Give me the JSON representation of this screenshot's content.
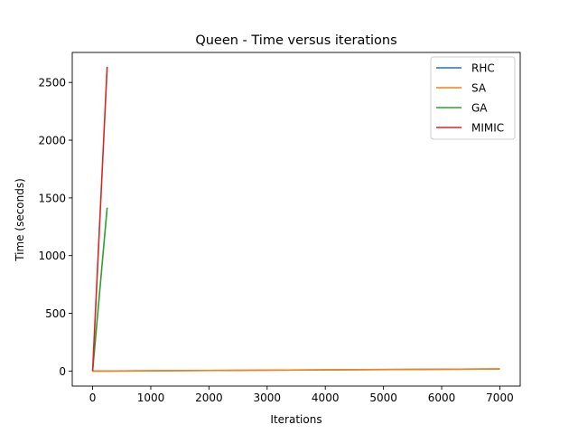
{
  "chart_data": {
    "type": "line",
    "title": "Queen - Time versus iterations",
    "xlabel": "Iterations",
    "ylabel": "Time (seconds)",
    "xlim": [
      -350,
      7350
    ],
    "ylim": [
      -130,
      2760
    ],
    "xticks": [
      0,
      1000,
      2000,
      3000,
      4000,
      5000,
      6000,
      7000
    ],
    "yticks": [
      0,
      500,
      1000,
      1500,
      2000,
      2500
    ],
    "grid": false,
    "legend_position": "top-right",
    "series": [
      {
        "name": "RHC",
        "color": "#1f77b4",
        "x": [
          0,
          7000
        ],
        "y": [
          0,
          18
        ]
      },
      {
        "name": "SA",
        "color": "#ff7f0e",
        "x": [
          0,
          7000
        ],
        "y": [
          0,
          18
        ]
      },
      {
        "name": "GA",
        "color": "#2ca02c",
        "x": [
          0,
          250
        ],
        "y": [
          0,
          1415
        ]
      },
      {
        "name": "MIMIC",
        "color": "#d62728",
        "x": [
          0,
          250
        ],
        "y": [
          0,
          2635
        ]
      }
    ]
  }
}
